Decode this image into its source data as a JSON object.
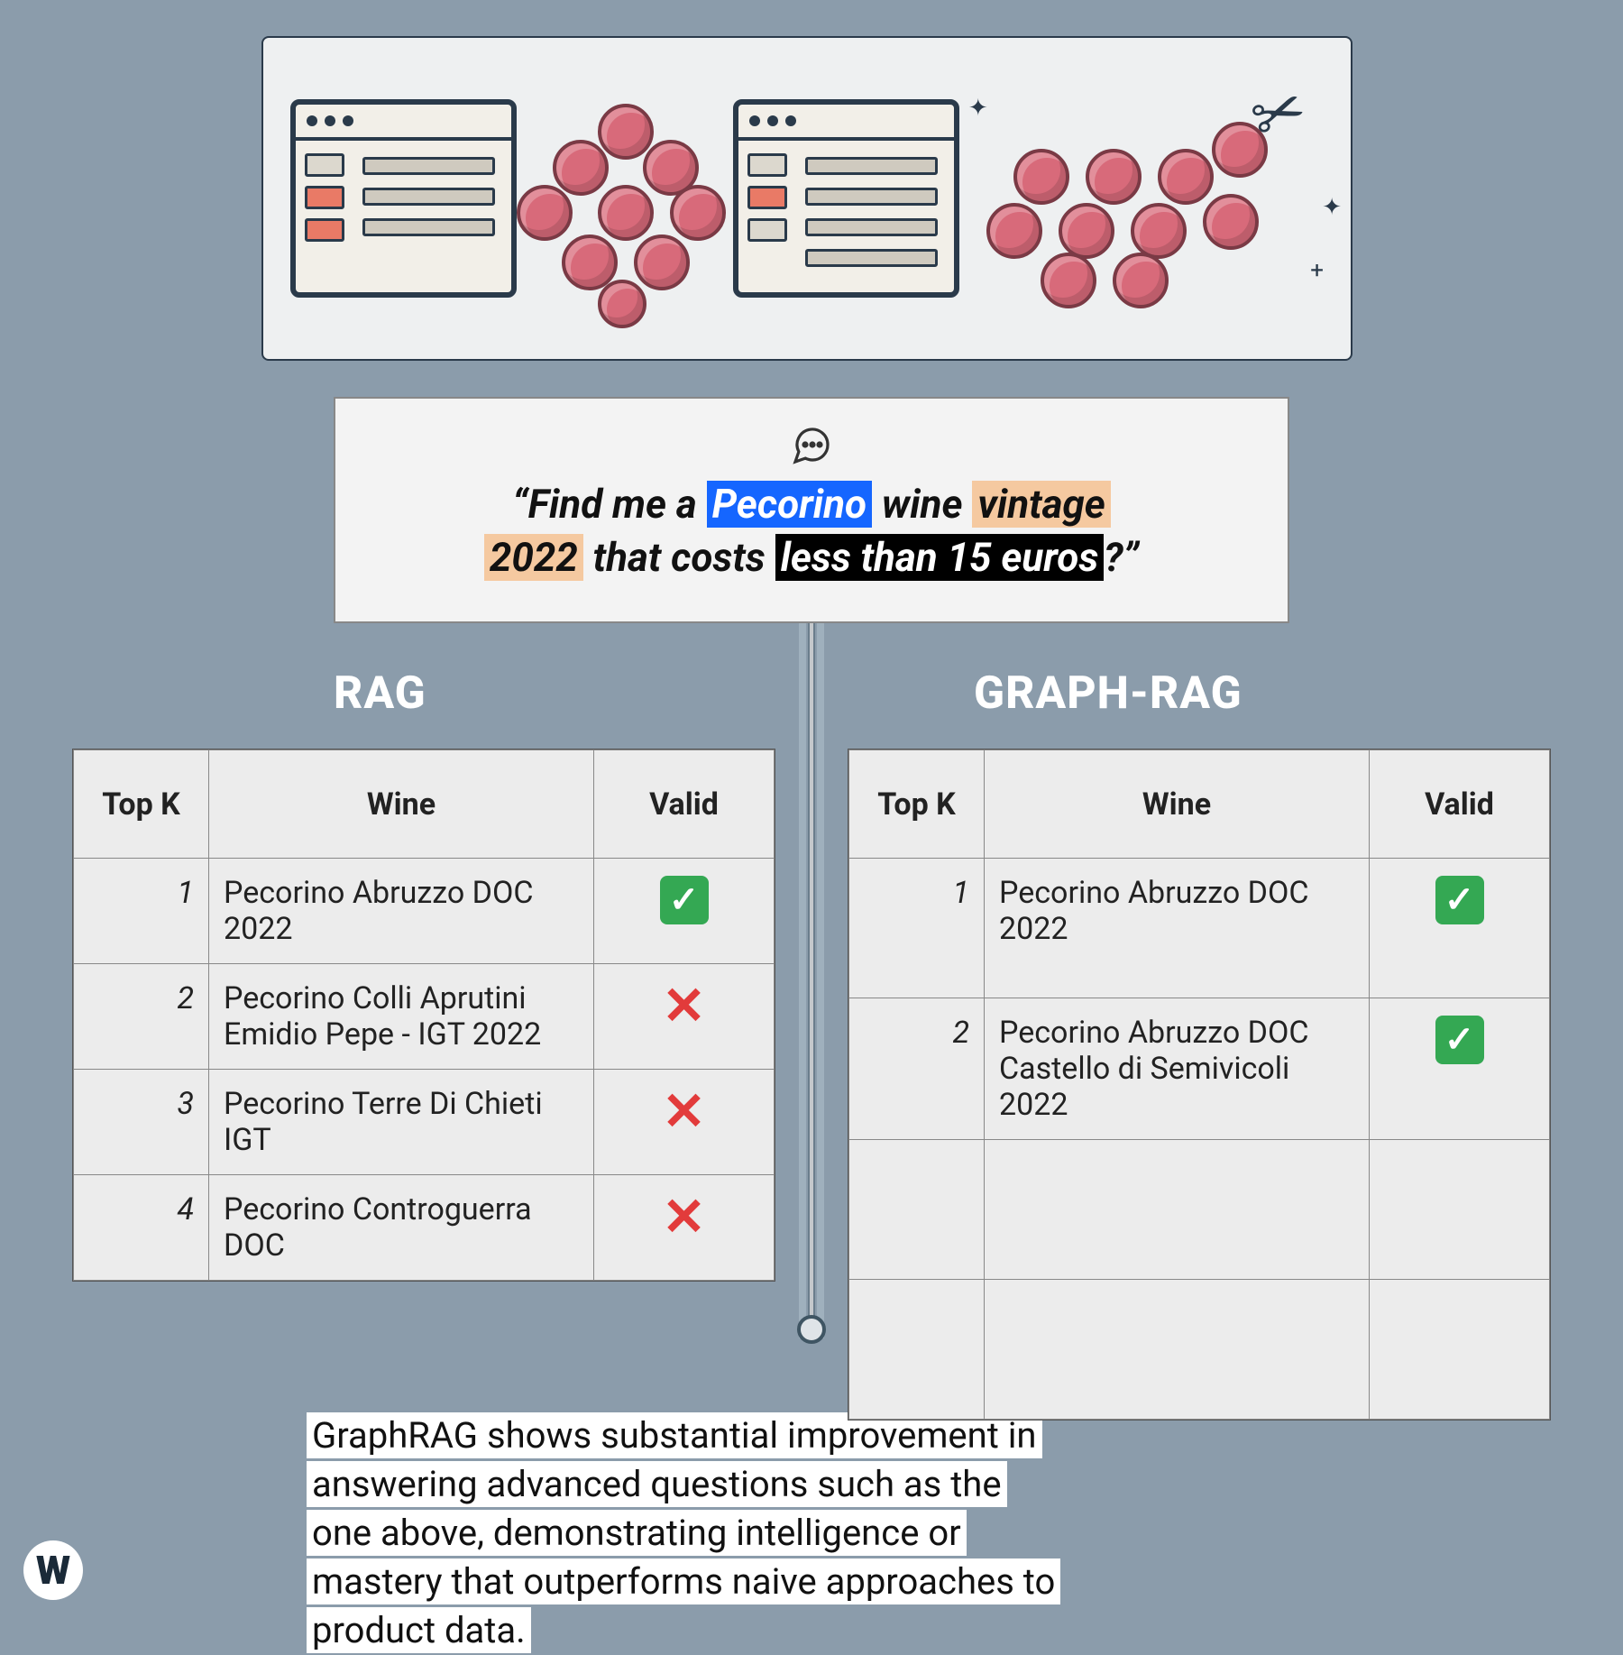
{
  "colors": {
    "page_bg": "#8b9cab",
    "panel_bg": "#ececec",
    "query_bg": "#f3f3f3",
    "hl_blue": "#1566ff",
    "hl_peach": "#f5c9a0",
    "hl_black": "#000000",
    "grape": "#d86a7a",
    "valid_green": "#34a853",
    "invalid_red": "#e23b3b",
    "text": "#111111",
    "title_white": "#ffffff"
  },
  "hero": {
    "icon_window_accent": "#e97a66",
    "icon_stroke": "#2a3a4a"
  },
  "query": {
    "open_quote": "“",
    "t1": "Find me a ",
    "hl1": "Pecorino",
    "t2": " wine ",
    "hl2a": "vintage",
    "hl2b": "2022",
    "t3": " that costs ",
    "hl3": "less than 15 euros",
    "t4": "?",
    "close_quote": "”"
  },
  "sections": {
    "left_title": "RAG",
    "right_title": "GRAPH-RAG"
  },
  "table": {
    "columns": {
      "k": "Top K",
      "wine": "Wine",
      "valid": "Valid"
    }
  },
  "rag": {
    "rows": [
      {
        "k": "1",
        "wine": "Pecorino Abruzzo DOC 2022",
        "valid": true
      },
      {
        "k": "2",
        "wine": "Pecorino Colli Aprutini Emidio Pepe - IGT 2022",
        "valid": false
      },
      {
        "k": "3",
        "wine": "Pecorino Terre Di Chieti IGT",
        "valid": false
      },
      {
        "k": "4",
        "wine": "Pecorino Controguerra DOC",
        "valid": false
      }
    ]
  },
  "graphrag": {
    "rows": [
      {
        "k": "1",
        "wine": "Pecorino Abruzzo DOC 2022",
        "valid": true
      },
      {
        "k": "2",
        "wine": "Pecorino Abruzzo DOC Castello di Semivicoli 2022",
        "valid": true
      },
      {
        "k": "",
        "wine": "",
        "valid": null
      },
      {
        "k": "",
        "wine": "",
        "valid": null
      }
    ]
  },
  "caption": {
    "l1": "GraphRAG shows substantial improvement in",
    "l2": "answering advanced questions such as the",
    "l3": "one above, demonstrating intelligence or",
    "l4": "mastery that outperforms naive approaches to",
    "l5": "product data."
  },
  "logo_letter": "W"
}
